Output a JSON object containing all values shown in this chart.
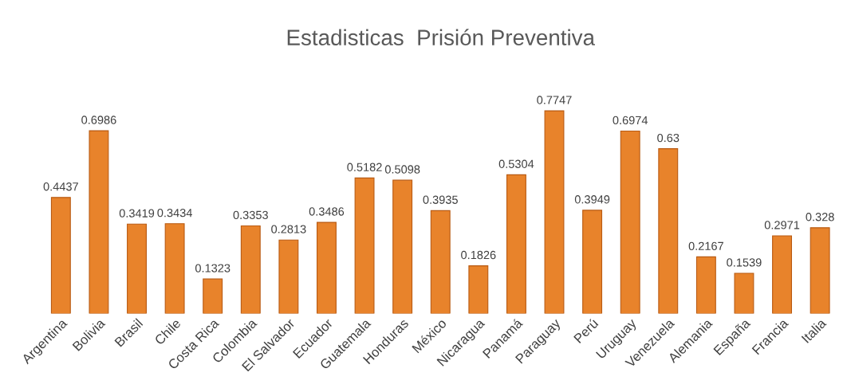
{
  "chart_data": {
    "type": "bar",
    "title": "Estadisticas  Prisión Preventiva",
    "categories": [
      "Argentina",
      "Bolivia",
      "Brasil",
      "Chile",
      "Costa Rica",
      "Colombia",
      "El Salvador",
      "Ecuador",
      "Guatemala",
      "Honduras",
      "México",
      "Nicaragua",
      "Panamá",
      "Paraguay",
      "Perú",
      "Uruguay",
      "Venezuela",
      "Alemania",
      "España",
      "Francia",
      "Italia"
    ],
    "values": [
      0.4437,
      0.6986,
      0.3419,
      0.3434,
      0.1323,
      0.3353,
      0.2813,
      0.3486,
      0.5182,
      0.5098,
      0.3935,
      0.1826,
      0.5304,
      0.7747,
      0.3949,
      0.6974,
      0.63,
      0.2167,
      0.1539,
      0.2971,
      0.328
    ],
    "color": "#e8832b",
    "data_labels": true,
    "grid": false,
    "legend": false
  }
}
